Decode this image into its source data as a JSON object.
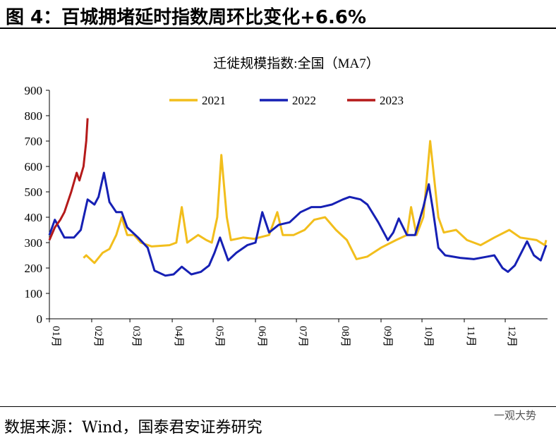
{
  "document": {
    "title": "图 4：百城拥堵延时指数周环比变化+6.6%",
    "source": "数据来源：Wind，国泰君安证券研究",
    "watermark": "一观大势"
  },
  "chart_data": {
    "type": "line",
    "title": "迁徙规模指数:全国（MA7）",
    "xlim": [
      1,
      366
    ],
    "xticks": [
      {
        "value": 1,
        "label": "01月"
      },
      {
        "value": 32,
        "label": "02月"
      },
      {
        "value": 60,
        "label": "03月"
      },
      {
        "value": 91,
        "label": "04月"
      },
      {
        "value": 121,
        "label": "05月"
      },
      {
        "value": 152,
        "label": "06月"
      },
      {
        "value": 182,
        "label": "07月"
      },
      {
        "value": 213,
        "label": "08月"
      },
      {
        "value": 244,
        "label": "09月"
      },
      {
        "value": 274,
        "label": "10月"
      },
      {
        "value": 305,
        "label": "11月"
      },
      {
        "value": 335,
        "label": "12月"
      }
    ],
    "ylim": [
      0,
      900
    ],
    "yticks": [
      0,
      100,
      200,
      300,
      400,
      500,
      600,
      700,
      800,
      900
    ],
    "grid": false,
    "legend": "top",
    "series": [
      {
        "name": "2021",
        "color": "#f2be1c",
        "x": [
          26,
          28,
          34,
          40,
          45,
          50,
          54,
          58,
          63,
          68,
          76,
          89,
          94,
          98,
          102,
          110,
          116,
          120,
          124,
          127,
          131,
          134,
          143,
          151,
          162,
          168,
          172,
          180,
          188,
          195,
          203,
          211,
          219,
          226,
          234,
          244,
          255,
          263,
          266,
          270,
          275,
          280,
          286,
          290,
          299,
          307,
          317,
          327,
          338,
          346,
          358,
          364,
          365
        ],
        "values": [
          240,
          250,
          220,
          260,
          275,
          330,
          400,
          330,
          330,
          300,
          285,
          290,
          300,
          440,
          300,
          330,
          310,
          300,
          400,
          645,
          400,
          310,
          320,
          315,
          330,
          420,
          330,
          330,
          350,
          390,
          400,
          350,
          310,
          235,
          245,
          280,
          310,
          330,
          440,
          330,
          400,
          700,
          400,
          340,
          350,
          310,
          290,
          320,
          350,
          320,
          310,
          290,
          310
        ]
      },
      {
        "name": "2022",
        "color": "#1620b4",
        "x": [
          1,
          5,
          9,
          12,
          19,
          24,
          29,
          34,
          37,
          41,
          45,
          50,
          54,
          58,
          66,
          73,
          78,
          86,
          92,
          98,
          105,
          112,
          118,
          122,
          126,
          132,
          138,
          146,
          152,
          157,
          162,
          169,
          177,
          185,
          193,
          200,
          208,
          216,
          221,
          229,
          234,
          242,
          249,
          253,
          257,
          263,
          269,
          275,
          279,
          282,
          286,
          291,
          302,
          312,
          322,
          327,
          333,
          337,
          342,
          351,
          356,
          361,
          365
        ],
        "values": [
          330,
          390,
          350,
          320,
          320,
          350,
          470,
          450,
          480,
          575,
          460,
          420,
          420,
          360,
          320,
          280,
          190,
          170,
          175,
          205,
          175,
          185,
          210,
          260,
          320,
          230,
          260,
          290,
          300,
          420,
          340,
          370,
          380,
          420,
          440,
          440,
          450,
          470,
          480,
          470,
          450,
          380,
          310,
          340,
          395,
          330,
          330,
          440,
          530,
          430,
          280,
          250,
          240,
          235,
          245,
          250,
          200,
          185,
          210,
          305,
          250,
          230,
          290
        ]
      },
      {
        "name": "2023",
        "color": "#b51a1a",
        "x": [
          1,
          5,
          9,
          12,
          17,
          21,
          23,
          26,
          28,
          29
        ],
        "values": [
          310,
          360,
          390,
          420,
          500,
          575,
          545,
          600,
          700,
          790
        ]
      }
    ]
  }
}
